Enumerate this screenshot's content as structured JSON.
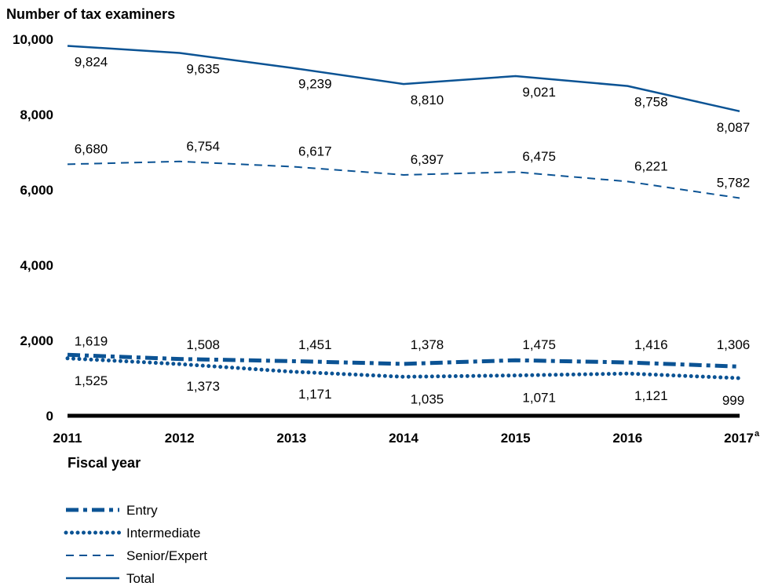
{
  "chart_data": {
    "type": "line",
    "ylabel": "Number of tax examiners",
    "xlabel": "Fiscal year",
    "x": [
      "2011",
      "2012",
      "2013",
      "2014",
      "2015",
      "2016",
      "2017"
    ],
    "x_superscript": {
      "2017": "a"
    },
    "ylim": [
      0,
      10000
    ],
    "yticks": [
      "0",
      "2,000",
      "4,000",
      "6,000",
      "8,000",
      "10,000"
    ],
    "ytick_values": [
      0,
      2000,
      4000,
      6000,
      8000,
      10000
    ],
    "grid": false,
    "legend_position": "bottom-left",
    "line_color": "#0b5394",
    "series": [
      {
        "name": "Entry",
        "style": "dash-dot",
        "values": [
          1619,
          1508,
          1451,
          1378,
          1475,
          1416,
          1306
        ],
        "labels": [
          "1,619",
          "1,508",
          "1,451",
          "1,378",
          "1,475",
          "1,416",
          "1,306"
        ]
      },
      {
        "name": "Intermediate",
        "style": "dotted",
        "values": [
          1525,
          1373,
          1171,
          1035,
          1071,
          1121,
          999
        ],
        "labels": [
          "1,525",
          "1,373",
          "1,171",
          "1,035",
          "1,071",
          "1,121",
          "999"
        ]
      },
      {
        "name": "Senior/Expert",
        "style": "dashed",
        "values": [
          6680,
          6754,
          6617,
          6397,
          6475,
          6221,
          5782
        ],
        "labels": [
          "6,680",
          "6,754",
          "6,617",
          "6,397",
          "6,475",
          "6,221",
          "5,782"
        ]
      },
      {
        "name": "Total",
        "style": "solid",
        "values": [
          9824,
          9635,
          9239,
          8810,
          9021,
          8758,
          8087
        ],
        "labels": [
          "9,824",
          "9,635",
          "9,239",
          "8,810",
          "9,021",
          "8,758",
          "8,087"
        ]
      }
    ]
  }
}
